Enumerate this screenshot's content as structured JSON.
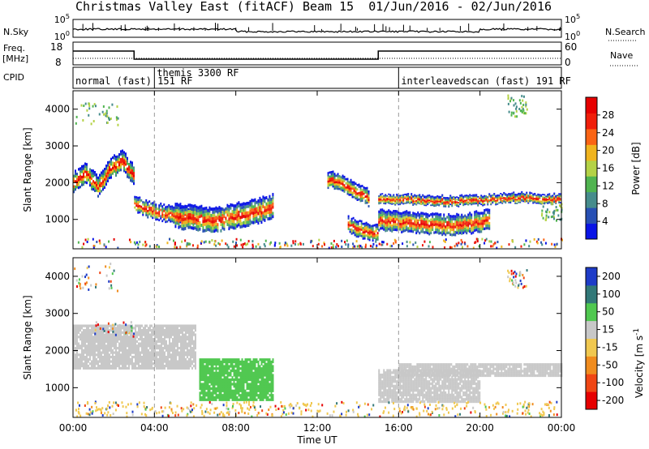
{
  "header": {
    "title": "Christmas Valley East (fitACF)",
    "beam": "Beam 15",
    "date_range": "01/Jun/2016 - 02/Jun/2016"
  },
  "status_panels": {
    "nsky_label": "N.Sky",
    "nsearch_label": "N.Search",
    "noise_ticks_left": [
      "10^5",
      "10^0"
    ],
    "noise_ticks_right": [
      "10^5",
      "10^0"
    ],
    "freq_label": "Freq. [MHz]",
    "freq_ticks": [
      "18",
      "8"
    ],
    "nave_label": "Nave",
    "nave_ticks": [
      "60",
      "0"
    ],
    "cpid_label": "CPID",
    "cpid_segments": [
      {
        "start_hour": 0,
        "text": "normal (fast) 151 RF"
      },
      {
        "start_hour": 4,
        "text": "themis 3300 RF"
      },
      {
        "start_hour": 16,
        "text": "interleavedscan (fast) 191 RF"
      }
    ]
  },
  "chart_data": [
    {
      "type": "heatmap",
      "panel": "power",
      "ylabel": "Slant Range [km]",
      "y_ticks": [
        1000,
        2000,
        3000,
        4000
      ],
      "ylim": [
        200,
        4500
      ],
      "colorbar_label": "Power [dB]",
      "colorbar_ticks": [
        4,
        8,
        12,
        16,
        20,
        24,
        28
      ],
      "colorbar_colors": [
        "#0a14e6",
        "#2850b4",
        "#468c8c",
        "#50b450",
        "#b4d246",
        "#f0b41e",
        "#fa6414",
        "#f01e0a",
        "#e60000"
      ],
      "bands": [
        {
          "hours": [
            0.0,
            3.0
          ],
          "center_km": [
            2000,
            2300,
            1900,
            2400,
            2600,
            2200
          ],
          "width_km": 250
        },
        {
          "hours": [
            3.0,
            6.0
          ],
          "center_km": [
            1400,
            1300,
            1200,
            1150,
            1100,
            1050
          ],
          "width_km": 200
        },
        {
          "hours": [
            5.0,
            9.8
          ],
          "center_km": [
            1100,
            1050,
            1000,
            1100,
            1200,
            1350
          ],
          "width_km": 300
        },
        {
          "hours": [
            12.5,
            14.5
          ],
          "center_km": [
            2100,
            2000,
            1800,
            1600
          ],
          "width_km": 200
        },
        {
          "hours": [
            13.5,
            15.0
          ],
          "center_km": [
            900,
            750,
            650,
            700
          ],
          "width_km": 200
        },
        {
          "hours": [
            15.0,
            20.5
          ],
          "center_km": [
            1000,
            950,
            900,
            850,
            900,
            1000
          ],
          "width_km": 250
        },
        {
          "hours": [
            15.0,
            24.0
          ],
          "center_km": [
            1550,
            1550,
            1500,
            1550,
            1600,
            1550
          ],
          "width_km": 120
        }
      ]
    },
    {
      "type": "heatmap",
      "panel": "velocity",
      "xlabel": "Time UT",
      "ylabel": "Slant Range [km]",
      "x_ticks": [
        "00:00",
        "04:00",
        "08:00",
        "12:00",
        "16:00",
        "20:00",
        "00:00"
      ],
      "xlim_hours": [
        0,
        24
      ],
      "y_ticks": [
        1000,
        2000,
        3000,
        4000
      ],
      "ylim": [
        200,
        4500
      ],
      "colorbar_label": "Velocity [m s^-1]",
      "colorbar_ticks": [
        200,
        100,
        50,
        15,
        -15,
        -50,
        -100,
        -200
      ],
      "colorbar_colors": [
        "#1e3cc8",
        "#327878",
        "#50c850",
        "#c8c8c8",
        "#f0c850",
        "#f08c1e",
        "#f04614",
        "#e60000"
      ],
      "regions": [
        {
          "hours": [
            0.0,
            6.0
          ],
          "range_km": [
            1500,
            2700
          ],
          "color": "#c8c8c8"
        },
        {
          "hours": [
            6.2,
            9.8
          ],
          "range_km": [
            650,
            1750
          ],
          "color": "#50c850"
        },
        {
          "hours": [
            15.0,
            20.0
          ],
          "range_km": [
            600,
            1500
          ],
          "color": "#c8c8c8"
        },
        {
          "hours": [
            16.0,
            24.0
          ],
          "range_km": [
            1300,
            1650
          ],
          "color": "#c8c8c8"
        }
      ]
    }
  ]
}
